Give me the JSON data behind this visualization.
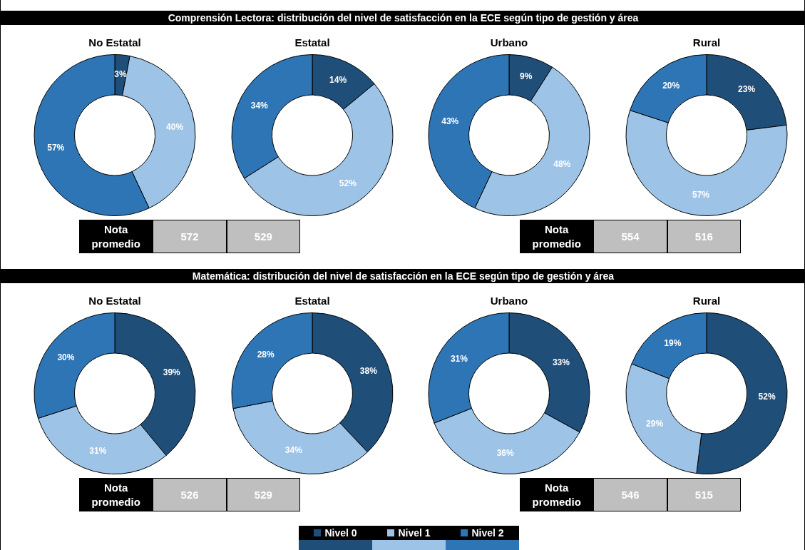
{
  "chart_data": [
    {
      "type": "other",
      "title": "Comprensión Lectora: distribución del nivel de satisfacción en la ECE según tipo de gestión y área"
    },
    {
      "type": "donut",
      "title": "No Estatal",
      "categories": [
        null,
        null,
        null
      ],
      "values": [
        3,
        40,
        57
      ],
      "value_labels": [
        "3%",
        "40%",
        "57%"
      ],
      "colors": [
        "#1f4e79",
        "#9dc3e6",
        "#2e75b6"
      ]
    },
    {
      "type": "donut",
      "title": "Estatal",
      "categories": [
        null,
        null,
        null
      ],
      "values": [
        14,
        52,
        34
      ],
      "value_labels": [
        "14%",
        "52%",
        "34%"
      ],
      "colors": [
        "#1f4e79",
        "#9dc3e6",
        "#2e75b6"
      ]
    },
    {
      "type": "donut",
      "title": "Urbano",
      "categories": [
        null,
        null,
        null
      ],
      "values": [
        9,
        48,
        43
      ],
      "value_labels": [
        "9%",
        "48%",
        "43%"
      ],
      "colors": [
        "#1f4e79",
        "#9dc3e6",
        "#2e75b6"
      ]
    },
    {
      "type": "donut",
      "title": "Rural",
      "categories": [
        null,
        null,
        null
      ],
      "values": [
        23,
        57,
        20
      ],
      "value_labels": [
        "23%",
        "57%",
        "20%"
      ],
      "colors": [
        "#1f4e79",
        "#9dc3e6",
        "#2e75b6"
      ]
    },
    {
      "type": "other",
      "annotations": [
        "Nota promedio",
        "572",
        "529"
      ]
    },
    {
      "type": "other",
      "annotations": [
        "Nota promedio",
        "554",
        "516"
      ]
    },
    {
      "type": "other",
      "title": "Matemática: distribución del nivel de satisfacción en la ECE según tipo de gestión y área"
    },
    {
      "type": "donut",
      "title": "No Estatal",
      "categories": [
        null,
        null,
        null
      ],
      "values": [
        39,
        31,
        30
      ],
      "value_labels": [
        "39%",
        "31%",
        "30%"
      ],
      "colors": [
        "#1f4e79",
        "#9dc3e6",
        "#2e75b6"
      ]
    },
    {
      "type": "donut",
      "title": "Estatal",
      "categories": [
        null,
        null,
        null
      ],
      "values": [
        38,
        34,
        28
      ],
      "value_labels": [
        "38%",
        "34%",
        "28%"
      ],
      "colors": [
        "#1f4e79",
        "#9dc3e6",
        "#2e75b6"
      ]
    },
    {
      "type": "donut",
      "title": "Urbano",
      "categories": [
        null,
        null,
        null
      ],
      "values": [
        33,
        36,
        31
      ],
      "value_labels": [
        "33%",
        "36%",
        "31%"
      ],
      "colors": [
        "#1f4e79",
        "#9dc3e6",
        "#2e75b6"
      ]
    },
    {
      "type": "donut",
      "title": "Rural",
      "categories": [
        "Nivel 0",
        "Nivel 1",
        "Nivel 2"
      ],
      "values": [
        52,
        29,
        19
      ],
      "value_labels": [
        "52%",
        "29%",
        "19%"
      ],
      "colors": [
        "#1f4e79",
        "#9dc3e6",
        "#2e75b6"
      ],
      "legend": "bottom"
    },
    {
      "type": "other",
      "annotations": [
        "Nota promedio",
        "526",
        "529"
      ]
    },
    {
      "type": "other",
      "annotations": [
        "Nota promedio",
        "546",
        "515"
      ]
    }
  ]
}
